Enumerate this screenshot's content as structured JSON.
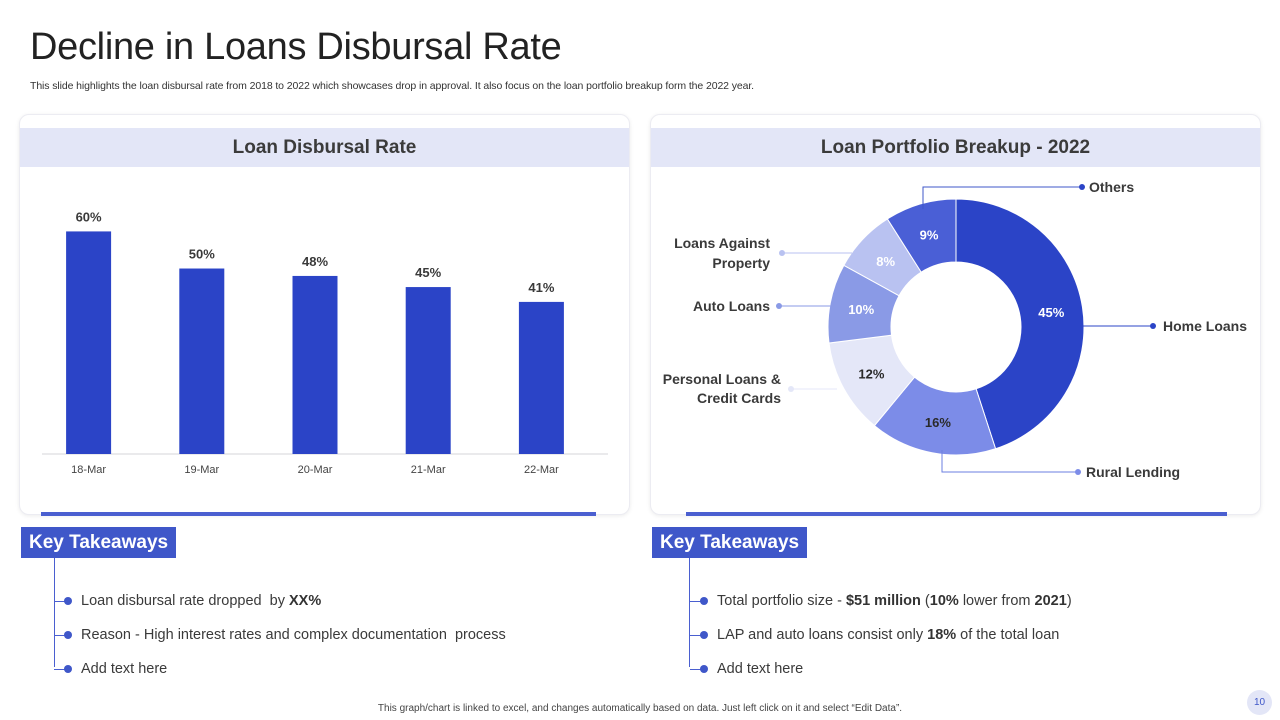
{
  "header": {
    "title": "Decline in Loans Disbursal Rate",
    "subtitle": "This slide highlights the loan disbursal rate from 2018 to 2022 which showcases drop in approval. It also focus on the loan portfolio breakup form the 2022 year."
  },
  "colors": {
    "accent": "#2b44c7",
    "header_bg": "#e3e6f7",
    "badge": "#3f57c9"
  },
  "chart_data": [
    {
      "type": "bar",
      "title": "Loan Disbursal Rate",
      "categories": [
        "18-Mar",
        "19-Mar",
        "20-Mar",
        "21-Mar",
        "22-Mar"
      ],
      "values": [
        60,
        50,
        48,
        45,
        41
      ],
      "value_labels": [
        "60%",
        "50%",
        "48%",
        "45%",
        "41%"
      ],
      "xlabel": "",
      "ylabel": "",
      "ylim": [
        0,
        62
      ],
      "grid": false,
      "color": "#2b44c7"
    },
    {
      "type": "pie",
      "subtype": "donut",
      "title": "Loan Portfolio Breakup - 2022",
      "slices": [
        {
          "label": "Home Loans",
          "value": 45,
          "display": "45%",
          "color": "#2b44c7",
          "text_color": "#ffffff"
        },
        {
          "label": "Rural Lending",
          "value": 16,
          "display": "16%",
          "color": "#7c8ce8",
          "text_color": "#2a2a2a"
        },
        {
          "label": "Personal Loans & Credit Cards",
          "value": 12,
          "display": "12%",
          "color": "#e4e7f8",
          "text_color": "#2a2a2a"
        },
        {
          "label": "Auto Loans",
          "value": 10,
          "display": "10%",
          "color": "#8a9ae6",
          "text_color": "#ffffff"
        },
        {
          "label": "Loans Against Property",
          "value": 8,
          "display": "8%",
          "color": "#b9c2f1",
          "text_color": "#ffffff"
        },
        {
          "label": "Others",
          "value": 9,
          "display": "9%",
          "color": "#4a5fd6",
          "text_color": "#ffffff"
        }
      ],
      "callouts": {
        "home": "Home Loans",
        "rural": "Rural Lending",
        "personal_1": "Personal Loans &",
        "personal_2": "Credit Cards",
        "auto": "Auto Loans",
        "lap_1": "Loans Against",
        "lap_2": "Property",
        "others": "Others"
      }
    }
  ],
  "takeaways_left": {
    "heading": "Key Takeaways",
    "items": [
      {
        "text": "Loan disbursal rate dropped  by ",
        "bold": "XX%"
      },
      {
        "text": "Reason - High interest rates and complex documentation  process"
      },
      {
        "text": "Add text here"
      }
    ]
  },
  "takeaways_right": {
    "heading": "Key Takeaways",
    "items": [
      {
        "t1": "Total portfolio size - ",
        "b1": "$51 million",
        "t2": " (",
        "b2": "10%",
        "t3": " lower from ",
        "b3": "2021",
        "t4": ")"
      },
      {
        "t1": "LAP and auto loans consist only ",
        "b1": "18%",
        "t2": " of the total loan"
      },
      {
        "t1": "Add text here"
      }
    ]
  },
  "footer": {
    "note": "This graph/chart is linked to excel, and changes automatically based on data. Just left click on it and select “Edit Data”.",
    "page_number": "10"
  }
}
